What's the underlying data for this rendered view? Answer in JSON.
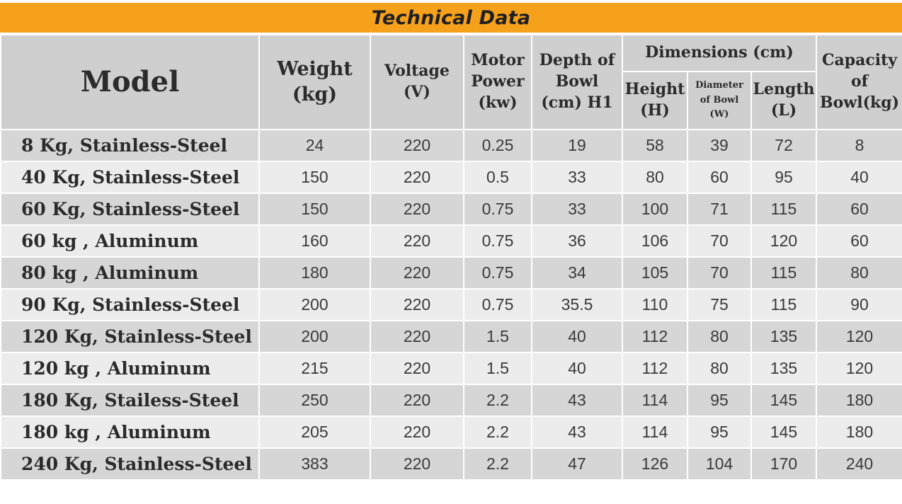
{
  "title": "Technical Data",
  "headers": {
    "model": "Model",
    "weight": [
      "Weight",
      "(kg)"
    ],
    "voltage": [
      "Voltage",
      "(V)"
    ],
    "motor_power": [
      "Motor",
      "Power",
      "(kw)"
    ],
    "depth": [
      "Depth of",
      "Bowl",
      "(cm) H1"
    ],
    "dimensions": "Dimensions (cm)",
    "height": [
      "Height",
      "(H)"
    ],
    "diameter": [
      "Diameter",
      "of Bowl",
      "(W)"
    ],
    "length": [
      "Length",
      "(L)"
    ],
    "capacity": [
      "Capacity",
      "of",
      "Bowl(kg)"
    ]
  },
  "rows": [
    {
      "model": "8 Kg, Stainless-Steel",
      "weight": "24",
      "voltage": "220",
      "power": "0.25",
      "depth": "19",
      "height": "58",
      "diameter": "39",
      "length": "72",
      "capacity": "8"
    },
    {
      "model": "40 Kg, Stainless-Steel",
      "weight": "150",
      "voltage": "220",
      "power": "0.5",
      "depth": "33",
      "height": "80",
      "diameter": "60",
      "length": "95",
      "capacity": "40"
    },
    {
      "model": "60 Kg, Stainless-Steel",
      "weight": "150",
      "voltage": "220",
      "power": "0.75",
      "depth": "33",
      "height": "100",
      "diameter": "71",
      "length": "115",
      "capacity": "60"
    },
    {
      "model": "60 kg , Aluminum",
      "weight": "160",
      "voltage": "220",
      "power": "0.75",
      "depth": "36",
      "height": "106",
      "diameter": "70",
      "length": "120",
      "capacity": "60"
    },
    {
      "model": "80 kg , Aluminum",
      "weight": "180",
      "voltage": "220",
      "power": "0.75",
      "depth": "34",
      "height": "105",
      "diameter": "70",
      "length": "115",
      "capacity": "80"
    },
    {
      "model": "90 Kg, Stainless-Steel",
      "weight": "200",
      "voltage": "220",
      "power": "0.75",
      "depth": "35.5",
      "height": "110",
      "diameter": "75",
      "length": "115",
      "capacity": "90"
    },
    {
      "model": "120 Kg, Stainless-Steel",
      "weight": "200",
      "voltage": "220",
      "power": "1.5",
      "depth": "40",
      "height": "112",
      "diameter": "80",
      "length": "135",
      "capacity": "120"
    },
    {
      "model": "120 kg , Aluminum",
      "weight": "215",
      "voltage": "220",
      "power": "1.5",
      "depth": "40",
      "height": "112",
      "diameter": "80",
      "length": "135",
      "capacity": "120"
    },
    {
      "model": "180 Kg, Stailess-Steel",
      "weight": "250",
      "voltage": "220",
      "power": "2.2",
      "depth": "43",
      "height": "114",
      "diameter": "95",
      "length": "145",
      "capacity": "180"
    },
    {
      "model": "180 kg , Aluminum",
      "weight": "205",
      "voltage": "220",
      "power": "2.2",
      "depth": "43",
      "height": "114",
      "diameter": "95",
      "length": "145",
      "capacity": "180"
    },
    {
      "model": "240 Kg, Stainless-Steel",
      "weight": "383",
      "voltage": "220",
      "power": "2.2",
      "depth": "47",
      "height": "126",
      "diameter": "104",
      "length": "170",
      "capacity": "240"
    }
  ],
  "colors": {
    "title_bar": "#f5a11c",
    "header_bg": "#cfcfcf",
    "row_dark": "#d6d6d6",
    "row_light": "#ececec"
  }
}
